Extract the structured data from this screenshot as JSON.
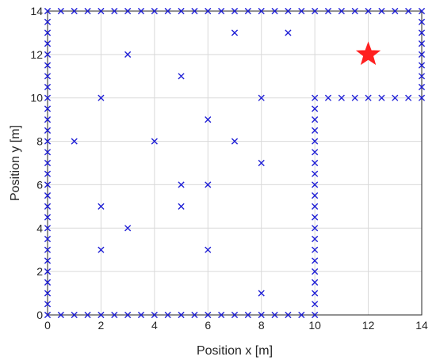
{
  "chart_data": {
    "type": "scatter",
    "xlabel": "Position x [m]",
    "ylabel": "Position y [m]",
    "xlim": [
      0,
      14
    ],
    "ylim": [
      0,
      14
    ],
    "xticks": [
      0,
      2,
      4,
      6,
      8,
      10,
      12,
      14
    ],
    "yticks": [
      0,
      2,
      4,
      6,
      8,
      10,
      12,
      14
    ],
    "grid": true,
    "series": [
      {
        "marker": "x",
        "color": "#1f1fd6",
        "points": [
          [
            0,
            0
          ],
          [
            0.5,
            0
          ],
          [
            1,
            0
          ],
          [
            1.5,
            0
          ],
          [
            2,
            0
          ],
          [
            2.5,
            0
          ],
          [
            3,
            0
          ],
          [
            3.5,
            0
          ],
          [
            4,
            0
          ],
          [
            4.5,
            0
          ],
          [
            5,
            0
          ],
          [
            5.5,
            0
          ],
          [
            6,
            0
          ],
          [
            6.5,
            0
          ],
          [
            7,
            0
          ],
          [
            7.5,
            0
          ],
          [
            8,
            0
          ],
          [
            8.5,
            0
          ],
          [
            9,
            0
          ],
          [
            9.5,
            0
          ],
          [
            10,
            0
          ],
          [
            0,
            0.5
          ],
          [
            0,
            1
          ],
          [
            0,
            1.5
          ],
          [
            0,
            2
          ],
          [
            0,
            2.5
          ],
          [
            0,
            3
          ],
          [
            0,
            3.5
          ],
          [
            0,
            4
          ],
          [
            0,
            4.5
          ],
          [
            0,
            5
          ],
          [
            0,
            5.5
          ],
          [
            0,
            6
          ],
          [
            0,
            6.5
          ],
          [
            0,
            7
          ],
          [
            0,
            7.5
          ],
          [
            0,
            8
          ],
          [
            0,
            8.5
          ],
          [
            0,
            9
          ],
          [
            0,
            9.5
          ],
          [
            0,
            10
          ],
          [
            0,
            10.5
          ],
          [
            0,
            11
          ],
          [
            0,
            11.5
          ],
          [
            0,
            12
          ],
          [
            0,
            12.5
          ],
          [
            0,
            13
          ],
          [
            0,
            13.5
          ],
          [
            0,
            14
          ],
          [
            0.5,
            14
          ],
          [
            1,
            14
          ],
          [
            1.5,
            14
          ],
          [
            2,
            14
          ],
          [
            2.5,
            14
          ],
          [
            3,
            14
          ],
          [
            3.5,
            14
          ],
          [
            4,
            14
          ],
          [
            4.5,
            14
          ],
          [
            5,
            14
          ],
          [
            5.5,
            14
          ],
          [
            6,
            14
          ],
          [
            6.5,
            14
          ],
          [
            7,
            14
          ],
          [
            7.5,
            14
          ],
          [
            8,
            14
          ],
          [
            8.5,
            14
          ],
          [
            9,
            14
          ],
          [
            9.5,
            14
          ],
          [
            10,
            14
          ],
          [
            10.5,
            14
          ],
          [
            11,
            14
          ],
          [
            11.5,
            14
          ],
          [
            12,
            14
          ],
          [
            12.5,
            14
          ],
          [
            13,
            14
          ],
          [
            13.5,
            14
          ],
          [
            14,
            14
          ],
          [
            14,
            13.5
          ],
          [
            14,
            13
          ],
          [
            14,
            12.5
          ],
          [
            14,
            12
          ],
          [
            14,
            11.5
          ],
          [
            14,
            11
          ],
          [
            14,
            10.5
          ],
          [
            14,
            10
          ],
          [
            10,
            10
          ],
          [
            10.5,
            10
          ],
          [
            11,
            10
          ],
          [
            11.5,
            10
          ],
          [
            12,
            10
          ],
          [
            12.5,
            10
          ],
          [
            13,
            10
          ],
          [
            13.5,
            10
          ],
          [
            10,
            9.5
          ],
          [
            10,
            9
          ],
          [
            10,
            8.5
          ],
          [
            10,
            8
          ],
          [
            10,
            7.5
          ],
          [
            10,
            7
          ],
          [
            10,
            6.5
          ],
          [
            10,
            6
          ],
          [
            10,
            5.5
          ],
          [
            10,
            5
          ],
          [
            10,
            4.5
          ],
          [
            10,
            4
          ],
          [
            10,
            3.5
          ],
          [
            10,
            3
          ],
          [
            10,
            2.5
          ],
          [
            10,
            2
          ],
          [
            10,
            1.5
          ],
          [
            10,
            1
          ],
          [
            10,
            0.5
          ],
          [
            7,
            13
          ],
          [
            9,
            13
          ],
          [
            3,
            12
          ],
          [
            5,
            11
          ],
          [
            2,
            10
          ],
          [
            8,
            10
          ],
          [
            6,
            9
          ],
          [
            1,
            8
          ],
          [
            4,
            8
          ],
          [
            7,
            8
          ],
          [
            8,
            7
          ],
          [
            5,
            6
          ],
          [
            6,
            6
          ],
          [
            2,
            5
          ],
          [
            5,
            5
          ],
          [
            3,
            4
          ],
          [
            2,
            3
          ],
          [
            6,
            3
          ],
          [
            8,
            1
          ]
        ]
      },
      {
        "marker": "star",
        "color": "#ff2020",
        "points": [
          [
            12,
            12
          ]
        ]
      }
    ]
  }
}
